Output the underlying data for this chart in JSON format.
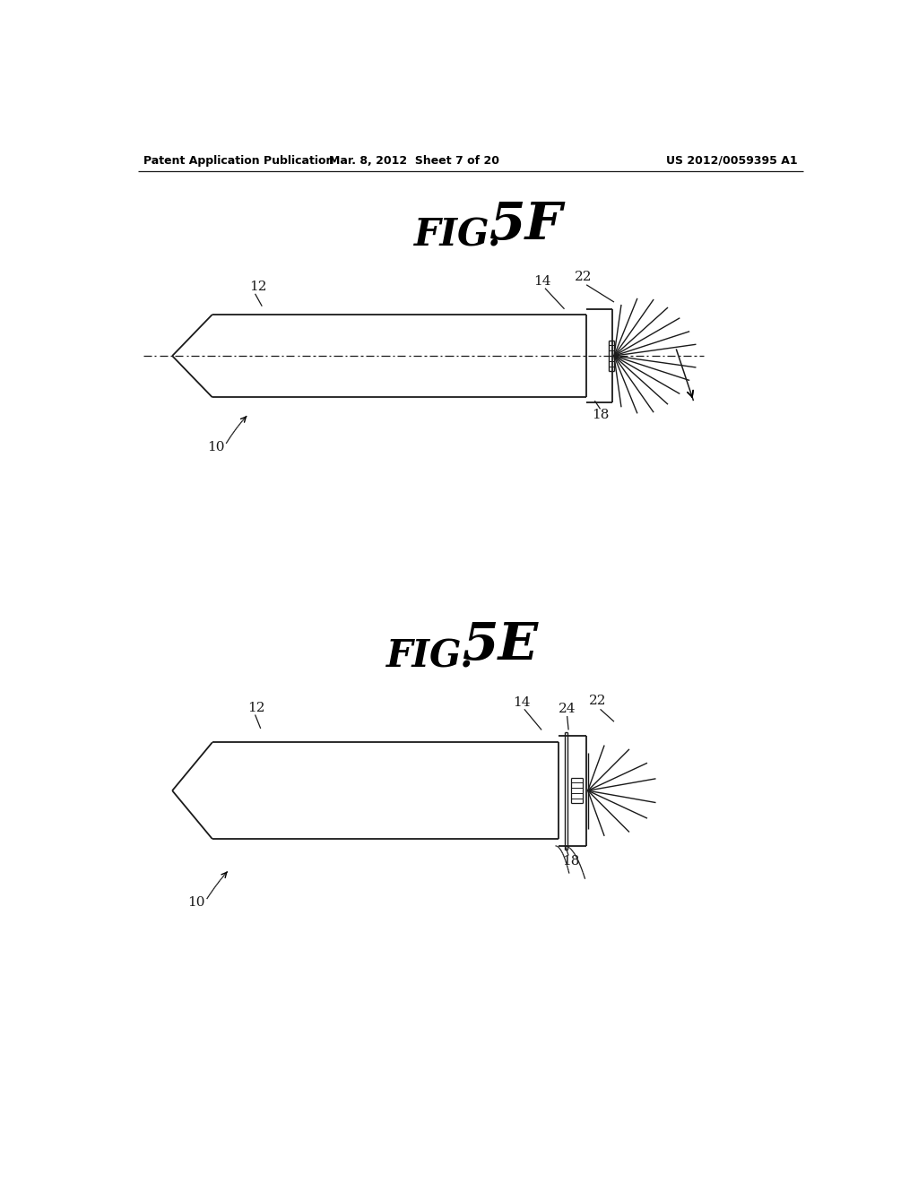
{
  "background_color": "#ffffff",
  "header_left": "Patent Application Publication",
  "header_center": "Mar. 8, 2012  Sheet 7 of 20",
  "header_right": "US 2012/0059395 A1",
  "fig_top_label": "FIG. 5F",
  "fig_bottom_label": "FIG. 5E",
  "line_color": "#1a1a1a",
  "label_color": "#1a1a1a"
}
